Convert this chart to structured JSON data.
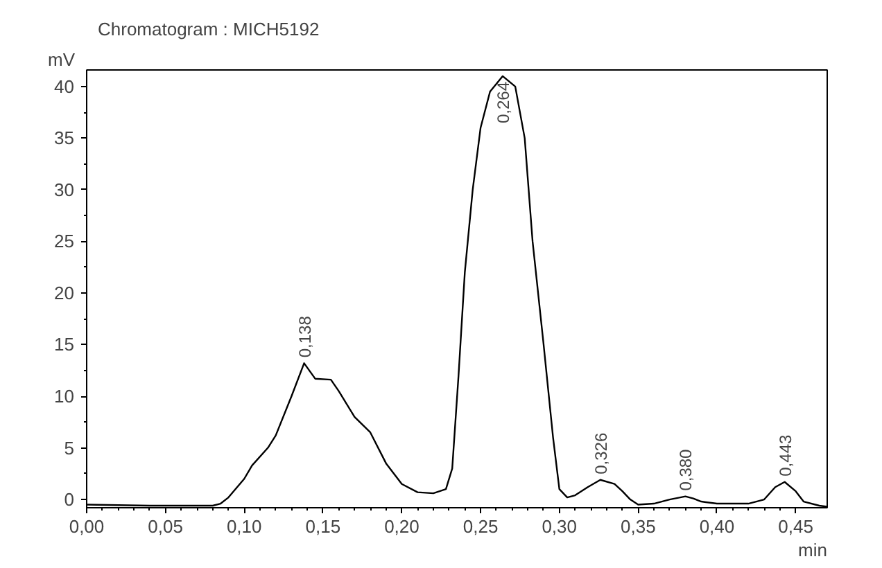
{
  "chart_data": {
    "type": "line",
    "title": "Chromatogram : MICH5192",
    "xlabel": "min",
    "ylabel": "mV",
    "x": [
      0.0,
      0.04,
      0.08,
      0.085,
      0.09,
      0.1,
      0.105,
      0.115,
      0.12,
      0.13,
      0.138,
      0.145,
      0.155,
      0.16,
      0.17,
      0.18,
      0.19,
      0.2,
      0.21,
      0.22,
      0.228,
      0.232,
      0.236,
      0.24,
      0.245,
      0.25,
      0.256,
      0.264,
      0.272,
      0.278,
      0.283,
      0.29,
      0.296,
      0.3,
      0.305,
      0.31,
      0.318,
      0.326,
      0.335,
      0.34,
      0.345,
      0.35,
      0.36,
      0.37,
      0.38,
      0.385,
      0.39,
      0.4,
      0.42,
      0.43,
      0.437,
      0.443,
      0.45,
      0.455,
      0.465,
      0.47
    ],
    "series": [
      {
        "color": "#000000",
        "values": [
          -0.5,
          -0.6,
          -0.6,
          -0.4,
          0.2,
          2.0,
          3.3,
          5.0,
          6.2,
          10.0,
          13.2,
          11.7,
          11.6,
          10.5,
          8.0,
          6.5,
          3.5,
          1.5,
          0.7,
          0.6,
          1.0,
          3.0,
          12.0,
          22.0,
          30.0,
          36.0,
          39.5,
          41.0,
          40.0,
          35.0,
          25.0,
          15.0,
          6.0,
          1.0,
          0.2,
          0.4,
          1.2,
          1.9,
          1.5,
          0.8,
          0.0,
          -0.5,
          -0.4,
          0.0,
          0.3,
          0.1,
          -0.2,
          -0.4,
          -0.4,
          0.0,
          1.2,
          1.7,
          0.8,
          -0.2,
          -0.6,
          -0.7
        ]
      }
    ],
    "xlim": [
      0.0,
      0.47
    ],
    "ylim": [
      -0.8,
      41.6
    ],
    "xticks": [
      {
        "value": 0.0,
        "label": "0,00"
      },
      {
        "value": 0.05,
        "label": "0,05"
      },
      {
        "value": 0.1,
        "label": "0,10"
      },
      {
        "value": 0.15,
        "label": "0,15"
      },
      {
        "value": 0.2,
        "label": "0,20"
      },
      {
        "value": 0.25,
        "label": "0,25"
      },
      {
        "value": 0.3,
        "label": "0,30"
      },
      {
        "value": 0.35,
        "label": "0,35"
      },
      {
        "value": 0.4,
        "label": "0,40"
      },
      {
        "value": 0.45,
        "label": "0,45"
      }
    ],
    "yticks": [
      0,
      5,
      10,
      15,
      20,
      25,
      30,
      35,
      40
    ],
    "annotations": [
      {
        "text": "0,138",
        "x": 0.138,
        "y": 13.2
      },
      {
        "text": "0,264",
        "x": 0.264,
        "y": 41.0
      },
      {
        "text": "0,326",
        "x": 0.326,
        "y": 1.9
      },
      {
        "text": "0,380",
        "x": 0.38,
        "y": 0.3
      },
      {
        "text": "0,443",
        "x": 0.443,
        "y": 1.7
      }
    ],
    "grid": false
  }
}
